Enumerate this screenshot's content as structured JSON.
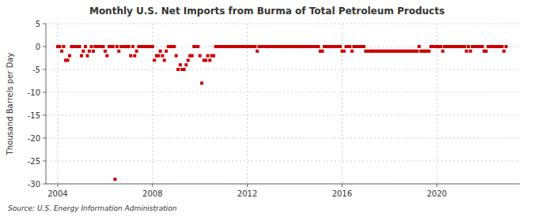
{
  "chart_data": {
    "type": "scatter",
    "title": "Monthly U.S. Net Imports from Burma of Total Petroleum Products",
    "ylabel": "Thousand Barrels per Day",
    "annotations": [
      "Source: U.S. Energy Information Administration"
    ],
    "color": "#cc0000",
    "marker": "square",
    "grid": true,
    "xlim": [
      2003.5,
      2023.5
    ],
    "xticks": [
      2004,
      2008,
      2012,
      2016,
      2020
    ],
    "ylim": [
      -30,
      5
    ],
    "yticks": [
      5,
      0,
      -5,
      -10,
      -15,
      -20,
      -25,
      -30
    ],
    "x": [
      2004.0,
      2004.08,
      2004.17,
      2004.25,
      2004.33,
      2004.42,
      2004.5,
      2004.58,
      2004.67,
      2004.75,
      2004.83,
      2004.92,
      2005.0,
      2005.08,
      2005.17,
      2005.25,
      2005.33,
      2005.42,
      2005.5,
      2005.58,
      2005.67,
      2005.75,
      2005.83,
      2005.92,
      2006.0,
      2006.08,
      2006.17,
      2006.25,
      2006.33,
      2006.42,
      2006.5,
      2006.58,
      2006.67,
      2006.75,
      2006.83,
      2006.92,
      2007.0,
      2007.08,
      2007.17,
      2007.25,
      2007.33,
      2007.42,
      2007.5,
      2007.58,
      2007.67,
      2007.75,
      2007.83,
      2007.92,
      2008.0,
      2008.08,
      2008.17,
      2008.25,
      2008.33,
      2008.42,
      2008.5,
      2008.58,
      2008.67,
      2008.75,
      2008.83,
      2008.92,
      2009.0,
      2009.08,
      2009.17,
      2009.25,
      2009.33,
      2009.42,
      2009.5,
      2009.58,
      2009.67,
      2009.75,
      2009.83,
      2009.92,
      2010.0,
      2010.08,
      2010.17,
      2010.25,
      2010.33,
      2010.42,
      2010.5,
      2010.58,
      2010.67,
      2010.75,
      2010.83,
      2010.92,
      2011.0,
      2011.08,
      2011.17,
      2011.25,
      2011.33,
      2011.42,
      2011.5,
      2011.58,
      2011.67,
      2011.75,
      2011.83,
      2011.92,
      2012.0,
      2012.08,
      2012.17,
      2012.25,
      2012.33,
      2012.42,
      2012.5,
      2012.58,
      2012.67,
      2012.75,
      2012.83,
      2012.92,
      2013.0,
      2013.08,
      2013.17,
      2013.25,
      2013.33,
      2013.42,
      2013.5,
      2013.58,
      2013.67,
      2013.75,
      2013.83,
      2013.92,
      2014.0,
      2014.08,
      2014.17,
      2014.25,
      2014.33,
      2014.42,
      2014.5,
      2014.58,
      2014.67,
      2014.75,
      2014.83,
      2014.92,
      2015.0,
      2015.08,
      2015.17,
      2015.25,
      2015.33,
      2015.42,
      2015.5,
      2015.58,
      2015.67,
      2015.75,
      2015.83,
      2015.92,
      2016.0,
      2016.08,
      2016.17,
      2016.25,
      2016.33,
      2016.42,
      2016.5,
      2016.58,
      2016.67,
      2016.75,
      2016.83,
      2016.92,
      2017.0,
      2017.08,
      2017.17,
      2017.25,
      2017.33,
      2017.42,
      2017.5,
      2017.58,
      2017.67,
      2017.75,
      2017.83,
      2017.92,
      2018.0,
      2018.08,
      2018.17,
      2018.25,
      2018.33,
      2018.42,
      2018.5,
      2018.58,
      2018.67,
      2018.75,
      2018.83,
      2018.92,
      2019.0,
      2019.08,
      2019.17,
      2019.25,
      2019.33,
      2019.42,
      2019.5,
      2019.58,
      2019.67,
      2019.75,
      2019.83,
      2019.92,
      2020.0,
      2020.08,
      2020.17,
      2020.25,
      2020.33,
      2020.42,
      2020.5,
      2020.58,
      2020.67,
      2020.75,
      2020.83,
      2020.92,
      2021.0,
      2021.08,
      2021.17,
      2021.25,
      2021.33,
      2021.42,
      2021.5,
      2021.58,
      2021.67,
      2021.75,
      2021.83,
      2021.92,
      2022.0,
      2022.08,
      2022.17,
      2022.25,
      2022.33,
      2022.42,
      2022.5,
      2022.58,
      2022.67,
      2022.75,
      2022.83,
      2022.92
    ],
    "values": [
      0,
      0,
      -1,
      0,
      -3,
      -3,
      -2,
      0,
      0,
      0,
      0,
      0,
      -2,
      -1,
      0,
      -2,
      -1,
      0,
      -1,
      0,
      0,
      0,
      0,
      0,
      -1,
      -2,
      0,
      0,
      0,
      -29,
      0,
      -1,
      0,
      0,
      0,
      0,
      0,
      -2,
      0,
      -2,
      -1,
      0,
      0,
      0,
      0,
      0,
      0,
      0,
      0,
      -3,
      -2,
      -2,
      -1,
      -2,
      -3,
      -1,
      0,
      0,
      0,
      0,
      -2,
      -5,
      -4,
      -5,
      -5,
      -4,
      -3,
      -2,
      -2,
      0,
      0,
      0,
      -2,
      -8,
      -3,
      -3,
      -2,
      -3,
      -2,
      -2,
      0,
      0,
      0,
      0,
      0,
      0,
      0,
      0,
      0,
      0,
      0,
      0,
      0,
      0,
      0,
      0,
      0,
      0,
      0,
      0,
      0,
      -1,
      0,
      0,
      0,
      0,
      0,
      0,
      0,
      0,
      0,
      0,
      0,
      0,
      0,
      0,
      0,
      0,
      0,
      0,
      0,
      0,
      0,
      0,
      0,
      0,
      0,
      0,
      0,
      0,
      0,
      0,
      0,
      -1,
      -1,
      0,
      0,
      0,
      0,
      0,
      0,
      0,
      0,
      0,
      -1,
      -1,
      0,
      0,
      0,
      -1,
      0,
      0,
      0,
      0,
      0,
      0,
      -1,
      -1,
      -1,
      -1,
      -1,
      -1,
      -1,
      -1,
      -1,
      -1,
      -1,
      -1,
      -1,
      -1,
      -1,
      -1,
      -1,
      -1,
      -1,
      -1,
      -1,
      -1,
      -1,
      -1,
      -1,
      -1,
      -1,
      0,
      -1,
      -1,
      -1,
      -1,
      -1,
      0,
      0,
      0,
      0,
      0,
      0,
      -1,
      0,
      0,
      0,
      0,
      0,
      0,
      0,
      0,
      0,
      0,
      0,
      -1,
      0,
      -1,
      0,
      0,
      0,
      0,
      0,
      0,
      -1,
      -1,
      0,
      0,
      0,
      0,
      0,
      0,
      0,
      0,
      -1,
      0
    ]
  }
}
